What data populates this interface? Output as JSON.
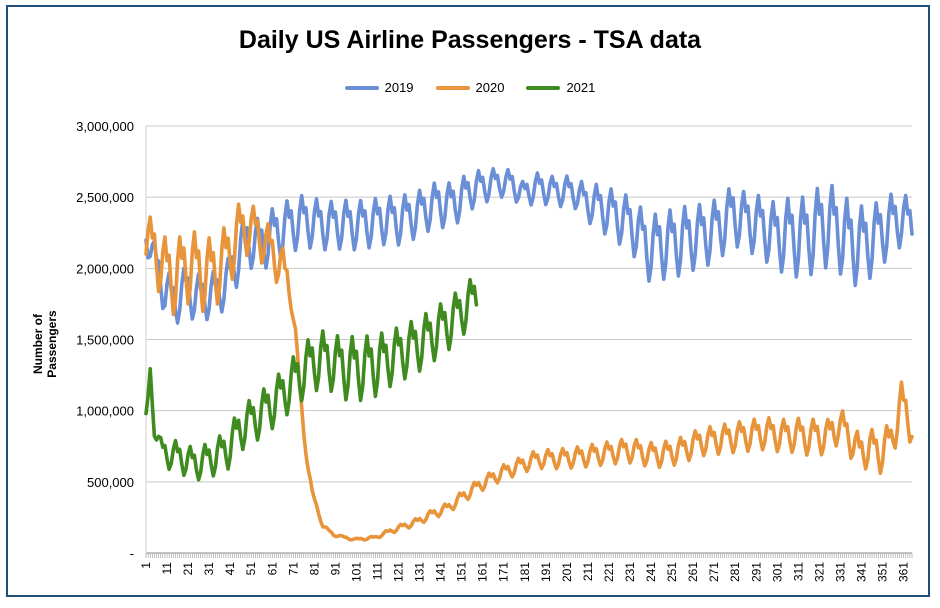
{
  "chart_data": {
    "type": "line",
    "title": "Daily US Airline Passengers - TSA data",
    "ylabel": "Number of Passengers",
    "xlabel": "",
    "ylim": [
      0,
      3000000
    ],
    "xlim": [
      1,
      365
    ],
    "y_ticks": [
      0,
      500000,
      1000000,
      1500000,
      2000000,
      2500000,
      3000000
    ],
    "y_tick_labels": [
      "-",
      "500,000",
      "1,000,000",
      "1,500,000",
      "2,000,000",
      "2,500,000",
      "3,000,000"
    ],
    "x_ticks": [
      1,
      11,
      21,
      31,
      41,
      51,
      61,
      71,
      81,
      91,
      101,
      111,
      121,
      131,
      141,
      151,
      161,
      171,
      181,
      191,
      201,
      211,
      221,
      231,
      241,
      251,
      261,
      271,
      281,
      291,
      301,
      311,
      321,
      331,
      341,
      351,
      361
    ],
    "grid": "horizontal",
    "legend": "top-center",
    "series": [
      {
        "name": "2019",
        "color": "#6a8fd6",
        "x": [
          1,
          6,
          10,
          15,
          20,
          25,
          30,
          35,
          40,
          45,
          50,
          55,
          60,
          65,
          70,
          75,
          80,
          85,
          90,
          95,
          100,
          105,
          110,
          115,
          120,
          125,
          130,
          135,
          140,
          145,
          150,
          155,
          160,
          165,
          170,
          175,
          180,
          185,
          190,
          195,
          200,
          205,
          210,
          215,
          220,
          225,
          230,
          235,
          240,
          245,
          250,
          255,
          260,
          265,
          270,
          275,
          280,
          285,
          290,
          295,
          300,
          305,
          310,
          315,
          320,
          325,
          330,
          335,
          340,
          345,
          350,
          355,
          360,
          365
        ],
        "y": [
          2240000,
          2020000,
          1830000,
          1760000,
          1850000,
          1790000,
          1800000,
          1830000,
          1900000,
          2100000,
          2200000,
          2150000,
          2220000,
          2260000,
          2300000,
          2330000,
          2320000,
          2300000,
          2300000,
          2310000,
          2300000,
          2310000,
          2320000,
          2340000,
          2330000,
          2350000,
          2380000,
          2420000,
          2450000,
          2440000,
          2480000,
          2540000,
          2570000,
          2590000,
          2600000,
          2590000,
          2520000,
          2560000,
          2560000,
          2540000,
          2540000,
          2530000,
          2460000,
          2440000,
          2400000,
          2360000,
          2320000,
          2250000,
          2130000,
          2160000,
          2170000,
          2190000,
          2210000,
          2230000,
          2250000,
          2300000,
          2380000,
          2330000,
          2310000,
          2280000,
          2220000,
          2230000,
          2220000,
          2220000,
          2270000,
          2310000,
          2260000,
          2180000,
          2160000,
          2180000,
          2250000,
          2300000,
          2350000,
          2300000
        ],
        "amplitude": [
          120000,
          130000,
          170000,
          160000,
          170000,
          170000,
          160000,
          160000,
          170000,
          200000,
          190000,
          190000,
          190000,
          190000,
          190000,
          180000,
          180000,
          170000,
          170000,
          170000,
          170000,
          170000,
          170000,
          170000,
          170000,
          170000,
          160000,
          160000,
          160000,
          160000,
          150000,
          130000,
          120000,
          110000,
          100000,
          100000,
          90000,
          110000,
          110000,
          100000,
          110000,
          110000,
          130000,
          150000,
          170000,
          180000,
          190000,
          200000,
          220000,
          240000,
          240000,
          240000,
          230000,
          220000,
          220000,
          210000,
          210000,
          210000,
          210000,
          220000,
          240000,
          260000,
          280000,
          280000,
          290000,
          300000,
          280000,
          300000,
          280000,
          250000,
          230000,
          220000,
          190000,
          170000
        ]
      },
      {
        "name": "2020",
        "color": "#e8943a",
        "x": [
          1,
          6,
          10,
          15,
          20,
          25,
          30,
          35,
          40,
          45,
          50,
          55,
          60,
          65,
          70,
          72,
          74,
          76,
          78,
          80,
          85,
          90,
          95,
          100,
          105,
          110,
          115,
          120,
          125,
          130,
          135,
          140,
          145,
          150,
          155,
          160,
          165,
          170,
          175,
          180,
          185,
          190,
          195,
          200,
          205,
          210,
          215,
          220,
          225,
          230,
          235,
          240,
          245,
          250,
          255,
          260,
          265,
          270,
          275,
          280,
          285,
          290,
          295,
          300,
          305,
          310,
          315,
          320,
          325,
          330,
          335,
          340,
          345,
          350,
          355,
          360,
          365
        ],
        "y": [
          2200000,
          2100000,
          1980000,
          1920000,
          2020000,
          1980000,
          1950000,
          1990000,
          2080000,
          2250000,
          2280000,
          2230000,
          2120000,
          2030000,
          1830000,
          1550000,
          1150000,
          850000,
          610000,
          420000,
          190000,
          130000,
          110000,
          95000,
          100000,
          110000,
          140000,
          170000,
          195000,
          220000,
          260000,
          290000,
          320000,
          380000,
          430000,
          480000,
          520000,
          560000,
          590000,
          620000,
          650000,
          660000,
          660000,
          665000,
          670000,
          680000,
          690000,
          700000,
          710000,
          720000,
          710000,
          690000,
          690000,
          700000,
          720000,
          750000,
          780000,
          790000,
          800000,
          810000,
          820000,
          830000,
          840000,
          830000,
          820000,
          830000,
          810000,
          820000,
          810000,
          900000,
          820000,
          700000,
          740000,
          700000,
          780000,
          1050000,
          900000
        ],
        "amplitude": [
          180000,
          230000,
          240000,
          260000,
          260000,
          270000,
          260000,
          240000,
          240000,
          200000,
          180000,
          170000,
          170000,
          160000,
          120000,
          60000,
          50000,
          40000,
          30000,
          20000,
          12000,
          10000,
          8000,
          8000,
          9000,
          10000,
          16000,
          20000,
          23000,
          26000,
          30000,
          34000,
          37000,
          40000,
          44000,
          47000,
          50000,
          53000,
          55000,
          58000,
          61000,
          65000,
          68000,
          70000,
          73000,
          75000,
          78000,
          80000,
          82000,
          85000,
          85000,
          86000,
          88000,
          90000,
          92000,
          95000,
          98000,
          100000,
          103000,
          105000,
          108000,
          110000,
          113000,
          115000,
          117000,
          120000,
          122000,
          125000,
          128000,
          130000,
          130000,
          130000,
          135000,
          140000,
          150000,
          150000,
          150000
        ]
      },
      {
        "name": "2021",
        "color": "#3f8b1f",
        "x": [
          1,
          3,
          5,
          8,
          10,
          15,
          20,
          25,
          30,
          35,
          40,
          45,
          50,
          55,
          60,
          65,
          70,
          75,
          80,
          85,
          90,
          95,
          100,
          105,
          110,
          115,
          120,
          125,
          130,
          135,
          140,
          145,
          150,
          155,
          158
        ],
        "y": [
          900000,
          1250000,
          900000,
          720000,
          700000,
          680000,
          650000,
          620000,
          650000,
          680000,
          730000,
          850000,
          920000,
          960000,
          1030000,
          1100000,
          1180000,
          1260000,
          1330000,
          1360000,
          1330000,
          1300000,
          1290000,
          1300000,
          1320000,
          1350000,
          1390000,
          1420000,
          1460000,
          1500000,
          1560000,
          1610000,
          1680000,
          1750000,
          1800000
        ],
        "amplitude": [
          80000,
          80000,
          80000,
          90000,
          100000,
          110000,
          110000,
          110000,
          120000,
          130000,
          140000,
          150000,
          150000,
          160000,
          170000,
          170000,
          180000,
          190000,
          200000,
          200000,
          200000,
          220000,
          230000,
          220000,
          220000,
          200000,
          190000,
          190000,
          190000,
          190000,
          180000,
          180000,
          170000,
          170000,
          160000
        ]
      }
    ]
  }
}
